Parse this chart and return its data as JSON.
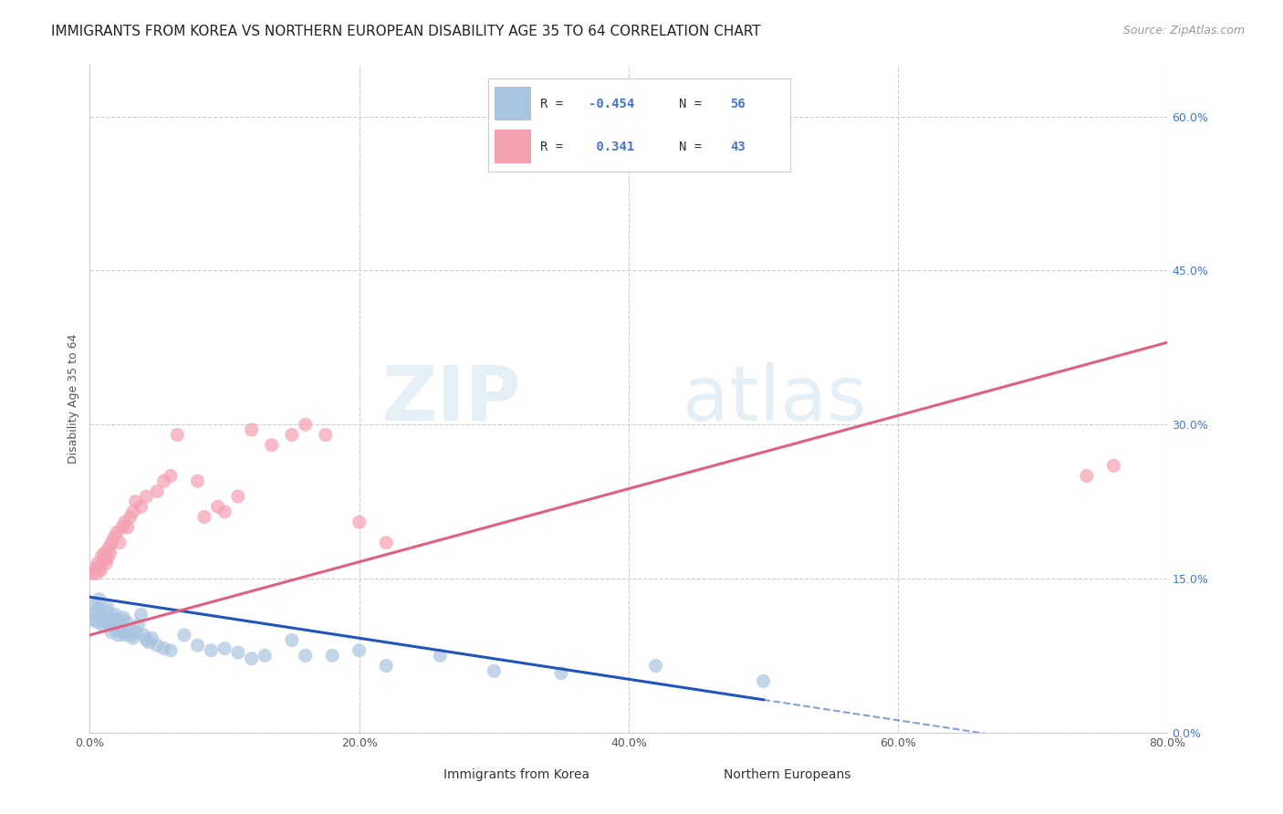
{
  "title": "IMMIGRANTS FROM KOREA VS NORTHERN EUROPEAN DISABILITY AGE 35 TO 64 CORRELATION CHART",
  "source": "Source: ZipAtlas.com",
  "ylabel": "Disability Age 35 to 64",
  "xlim": [
    0.0,
    0.8
  ],
  "ylim": [
    0.0,
    0.65
  ],
  "yticks": [
    0.0,
    0.15,
    0.3,
    0.45,
    0.6
  ],
  "ytick_labels": [
    "0.0%",
    "15.0%",
    "30.0%",
    "45.0%",
    "60.0%"
  ],
  "xticks": [
    0.0,
    0.2,
    0.4,
    0.6,
    0.8
  ],
  "xtick_labels": [
    "0.0%",
    "20.0%",
    "40.0%",
    "60.0%",
    "80.0%"
  ],
  "korea_R": "-0.454",
  "korea_N": "56",
  "northern_R": "0.341",
  "northern_N": "43",
  "korea_color": "#a8c4e0",
  "northern_color": "#f4a0b0",
  "korea_line_color": "#2255bb",
  "northern_line_color": "#e06080",
  "korea_scatter_x": [
    0.002,
    0.003,
    0.004,
    0.005,
    0.006,
    0.007,
    0.008,
    0.009,
    0.01,
    0.011,
    0.012,
    0.013,
    0.014,
    0.015,
    0.016,
    0.017,
    0.018,
    0.019,
    0.02,
    0.021,
    0.022,
    0.023,
    0.024,
    0.025,
    0.026,
    0.027,
    0.028,
    0.03,
    0.032,
    0.034,
    0.036,
    0.038,
    0.04,
    0.042,
    0.044,
    0.046,
    0.05,
    0.055,
    0.06,
    0.07,
    0.08,
    0.09,
    0.1,
    0.11,
    0.12,
    0.13,
    0.15,
    0.16,
    0.18,
    0.2,
    0.22,
    0.26,
    0.3,
    0.35,
    0.42,
    0.5
  ],
  "korea_scatter_y": [
    0.115,
    0.11,
    0.125,
    0.108,
    0.12,
    0.13,
    0.115,
    0.105,
    0.112,
    0.108,
    0.118,
    0.122,
    0.11,
    0.105,
    0.098,
    0.112,
    0.108,
    0.115,
    0.1,
    0.095,
    0.11,
    0.105,
    0.098,
    0.112,
    0.095,
    0.108,
    0.1,
    0.095,
    0.092,
    0.098,
    0.105,
    0.115,
    0.095,
    0.09,
    0.088,
    0.092,
    0.085,
    0.082,
    0.08,
    0.095,
    0.085,
    0.08,
    0.082,
    0.078,
    0.072,
    0.075,
    0.09,
    0.075,
    0.075,
    0.08,
    0.065,
    0.075,
    0.06,
    0.058,
    0.065,
    0.05
  ],
  "northern_scatter_x": [
    0.002,
    0.004,
    0.005,
    0.006,
    0.007,
    0.008,
    0.009,
    0.01,
    0.011,
    0.012,
    0.013,
    0.014,
    0.015,
    0.016,
    0.018,
    0.02,
    0.022,
    0.024,
    0.026,
    0.028,
    0.03,
    0.032,
    0.034,
    0.038,
    0.042,
    0.05,
    0.055,
    0.06,
    0.065,
    0.08,
    0.085,
    0.095,
    0.1,
    0.11,
    0.12,
    0.135,
    0.15,
    0.16,
    0.175,
    0.2,
    0.22,
    0.74,
    0.76
  ],
  "northern_scatter_y": [
    0.155,
    0.16,
    0.155,
    0.165,
    0.16,
    0.158,
    0.172,
    0.168,
    0.175,
    0.165,
    0.17,
    0.18,
    0.175,
    0.185,
    0.19,
    0.195,
    0.185,
    0.2,
    0.205,
    0.2,
    0.21,
    0.215,
    0.225,
    0.22,
    0.23,
    0.235,
    0.245,
    0.25,
    0.29,
    0.245,
    0.21,
    0.22,
    0.215,
    0.23,
    0.295,
    0.28,
    0.29,
    0.3,
    0.29,
    0.205,
    0.185,
    0.25,
    0.26
  ],
  "background_color": "#ffffff",
  "grid_color": "#cccccc",
  "title_fontsize": 11,
  "axis_label_fontsize": 9,
  "tick_fontsize": 9,
  "legend_fontsize": 10,
  "right_tick_color": "#4477cc",
  "korea_line_x0": 0.0,
  "korea_line_y0": 0.132,
  "korea_line_x1": 0.5,
  "korea_line_y1": 0.032,
  "northern_line_x0": 0.0,
  "northern_line_y0": 0.095,
  "northern_line_x1": 0.8,
  "northern_line_y1": 0.38
}
